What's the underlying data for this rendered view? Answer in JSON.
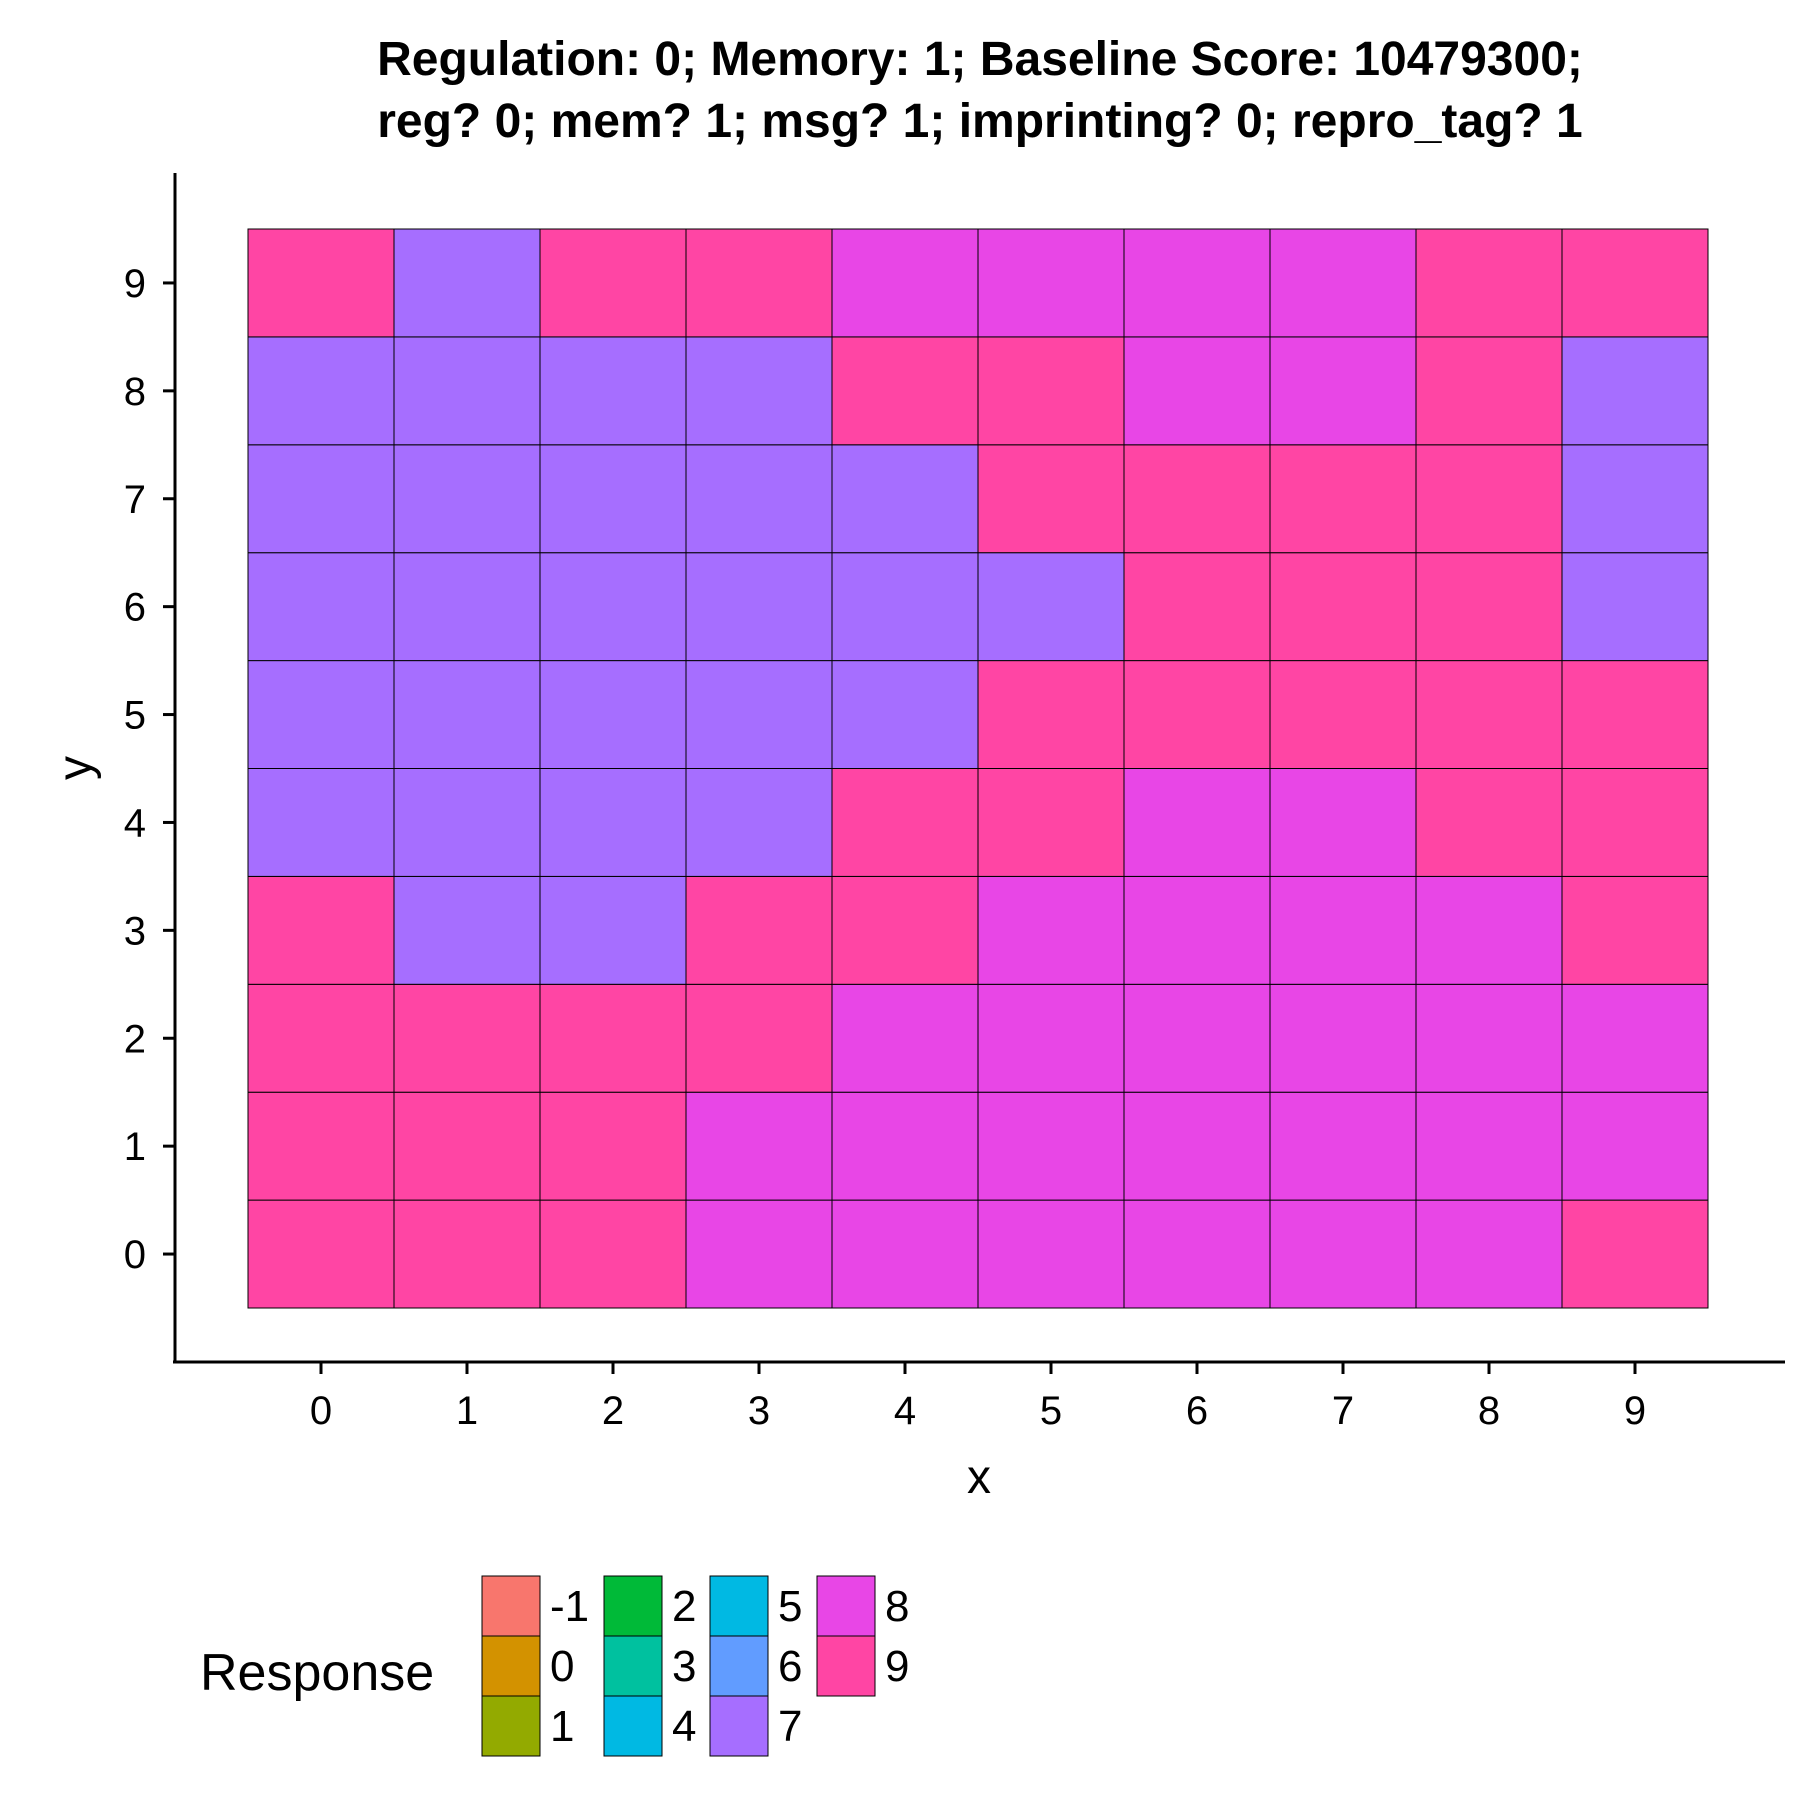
{
  "chart_data": {
    "type": "heatmap",
    "title": [
      "Regulation: 0; Memory: 1; Baseline Score: 10479300;",
      "reg? 0; mem? 1; msg? 1; imprinting? 0; repro_tag? 1"
    ],
    "xlabel": "x",
    "ylabel": "y",
    "x": [
      0,
      1,
      2,
      3,
      4,
      5,
      6,
      7,
      8,
      9
    ],
    "y": [
      0,
      1,
      2,
      3,
      4,
      5,
      6,
      7,
      8,
      9
    ],
    "x_ticks": [
      "0",
      "1",
      "2",
      "3",
      "4",
      "5",
      "6",
      "7",
      "8",
      "9"
    ],
    "y_ticks": [
      "0",
      "1",
      "2",
      "3",
      "4",
      "5",
      "6",
      "7",
      "8",
      "9"
    ],
    "grid": false,
    "values_by_row_y0_to_y9": [
      [
        9,
        9,
        9,
        8,
        8,
        8,
        8,
        8,
        8,
        9
      ],
      [
        9,
        9,
        9,
        8,
        8,
        8,
        8,
        8,
        8,
        8
      ],
      [
        9,
        9,
        9,
        9,
        8,
        8,
        8,
        8,
        8,
        8
      ],
      [
        9,
        7,
        7,
        9,
        9,
        8,
        8,
        8,
        8,
        9
      ],
      [
        7,
        7,
        7,
        7,
        9,
        9,
        8,
        8,
        9,
        9
      ],
      [
        7,
        7,
        7,
        7,
        7,
        9,
        9,
        9,
        9,
        9
      ],
      [
        7,
        7,
        7,
        7,
        7,
        7,
        9,
        9,
        9,
        7
      ],
      [
        7,
        7,
        7,
        7,
        7,
        9,
        9,
        9,
        9,
        7
      ],
      [
        7,
        7,
        7,
        7,
        9,
        9,
        8,
        8,
        9,
        7
      ],
      [
        9,
        7,
        9,
        9,
        8,
        8,
        8,
        8,
        9,
        9
      ]
    ],
    "legend": {
      "title": "Response",
      "placement": "bottom",
      "entries": [
        {
          "label": "-1",
          "color": "#F8766D"
        },
        {
          "label": "0",
          "color": "#D39200"
        },
        {
          "label": "1",
          "color": "#93AA00"
        },
        {
          "label": "2",
          "color": "#00BA38"
        },
        {
          "label": "3",
          "color": "#00C19F"
        },
        {
          "label": "4",
          "color": "#00B9E3"
        },
        {
          "label": "5",
          "color": "#00B9E3"
        },
        {
          "label": "6",
          "color": "#619CFF"
        },
        {
          "label": "7",
          "color": "#A66EFF"
        },
        {
          "label": "8",
          "color": "#E846E6"
        },
        {
          "label": "9",
          "color": "#FF45A4"
        }
      ]
    }
  }
}
